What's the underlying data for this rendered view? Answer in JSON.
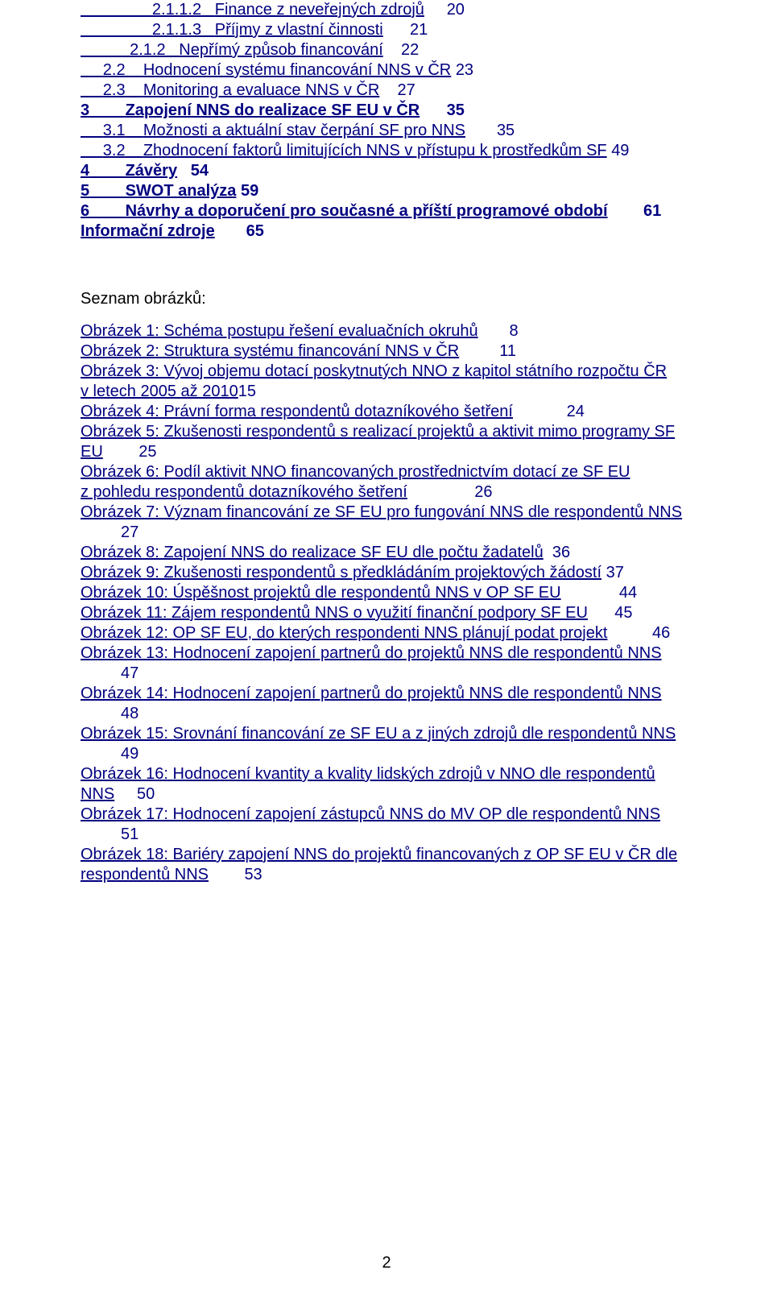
{
  "colors": {
    "link": "#000080",
    "body_text": "#000000",
    "background": "#ffffff"
  },
  "typography": {
    "font_family": "Arial",
    "font_size_pt": 12,
    "line_height": 1.25
  },
  "toc": {
    "l_2_1_1_2": {
      "num": "2.1.1.2",
      "label": "Finance z neveřejných zdrojů",
      "page": "20",
      "indent": "                "
    },
    "l_2_1_1_3": {
      "num": "2.1.1.3",
      "label": "Příjmy z vlastní činnosti",
      "page": "21",
      "indent": "                "
    },
    "l_2_1_2": {
      "num": "2.1.2",
      "label": "Nepřímý způsob financování",
      "page": "22",
      "indent": "           "
    },
    "l_2_2": {
      "num": "2.2",
      "label": "Hodnocení systému financování NNS v ČR",
      "page": "23",
      "indent": "     "
    },
    "l_2_3": {
      "num": "2.3",
      "label": "Monitoring a evaluace NNS v ČR",
      "page": "27",
      "indent": "     "
    },
    "l_3": {
      "num": "3",
      "label": "Zapojení NNS do realizace SF EU v ČR",
      "page": "35",
      "indent": "",
      "bold": true
    },
    "l_3_1": {
      "num": "3.1",
      "label": "Možnosti a aktuální stav čerpání SF pro NNS",
      "page": "35",
      "indent": "     "
    },
    "l_3_2": {
      "num": "3.2",
      "label": "Zhodnocení faktorů limitujících NNS v přístupu k prostředkům SF",
      "page": "49",
      "indent": "     "
    },
    "l_4": {
      "num": "4",
      "label": "Závěry",
      "page": "54",
      "indent": "",
      "bold": true
    },
    "l_5": {
      "num": "5",
      "label": "SWOT analýza",
      "page": "59",
      "indent": "",
      "bold": true
    },
    "l_6": {
      "num": "6",
      "label": "Návrhy a doporučení pro současné a příští programové období",
      "page": "61",
      "indent": "",
      "bold": true
    },
    "l_info": {
      "num": "",
      "label": "Informační zdroje",
      "page": "65",
      "indent": "",
      "bold": true
    }
  },
  "figures_heading": "Seznam obrázků:",
  "figures": {
    "f1": {
      "text": "Obrázek 1: Schéma postupu řešení evaluačních okruhů",
      "page": "8"
    },
    "f2": {
      "text": "Obrázek 2: Struktura systému financování NNS v ČR",
      "page": "11"
    },
    "f3a": {
      "text": "Obrázek 3: Vývoj objemu dotací poskytnutých NNO z kapitol státního rozpočtu ČR"
    },
    "f3b": {
      "text": "v letech 2005 až 2010",
      "page": "15"
    },
    "f4": {
      "text": "Obrázek 4: Právní forma respondentů dotazníkového šetření",
      "page": "24"
    },
    "f5a": {
      "text": "Obrázek 5: Zkušenosti respondentů s realizací projektů a aktivit mimo programy SF"
    },
    "f5b": {
      "text": "EU",
      "page": "25"
    },
    "f6a": {
      "text": "Obrázek 6: Podíl aktivit NNO financovaných prostřednictvím dotací ze SF EU"
    },
    "f6b": {
      "text": "z pohledu respondentů dotazníkového šetření",
      "page": "26"
    },
    "f7a": {
      "text": "Obrázek 7: Význam financování ze SF EU pro fungování NNS dle respondentů NNS"
    },
    "f7b": {
      "text": "",
      "page": "27"
    },
    "f8": {
      "text": "Obrázek 8: Zapojení NNS do realizace SF EU dle počtu žadatelů",
      "page": "36"
    },
    "f9": {
      "text": "Obrázek 9: Zkušenosti respondentů s předkládáním projektových žádostí",
      "page": "37"
    },
    "f10": {
      "text": "Obrázek 10: Úspěšnost projektů dle respondentů NNS v OP SF EU",
      "page": "44"
    },
    "f11": {
      "text": "Obrázek 11: Zájem respondentů NNS o využití finanční podpory SF EU",
      "page": "45"
    },
    "f12": {
      "text": "Obrázek 12: OP SF EU, do kterých respondenti NNS plánují podat projekt",
      "page": "46"
    },
    "f13a": {
      "text": "Obrázek 13: Hodnocení zapojení partnerů do projektů NNS dle respondentů NNS"
    },
    "f13b": {
      "text": "",
      "page": "47"
    },
    "f14a": {
      "text": "Obrázek 14: Hodnocení zapojení partnerů do projektů NNS dle respondentů NNS"
    },
    "f14b": {
      "text": "",
      "page": "48"
    },
    "f15a": {
      "text": "Obrázek 15: Srovnání financování ze SF EU a z jiných zdrojů dle respondentů NNS"
    },
    "f15b": {
      "text": "",
      "page": "49"
    },
    "f16a": {
      "text": "Obrázek 16: Hodnocení kvantity a kvality lidských zdrojů v NNO dle respondentů"
    },
    "f16b": {
      "text": "NNS",
      "page": "50"
    },
    "f17a": {
      "text": "Obrázek 17: Hodnocení zapojení zástupců NNS do MV OP dle respondentů NNS"
    },
    "f17b": {
      "text": "",
      "page": "51"
    },
    "f18a": {
      "text": "Obrázek 18: Bariéry zapojení NNS do projektů financovaných z OP SF EU v ČR dle"
    },
    "f18b": {
      "text": "respondentů NNS",
      "page": "53"
    }
  },
  "page_number": "2"
}
